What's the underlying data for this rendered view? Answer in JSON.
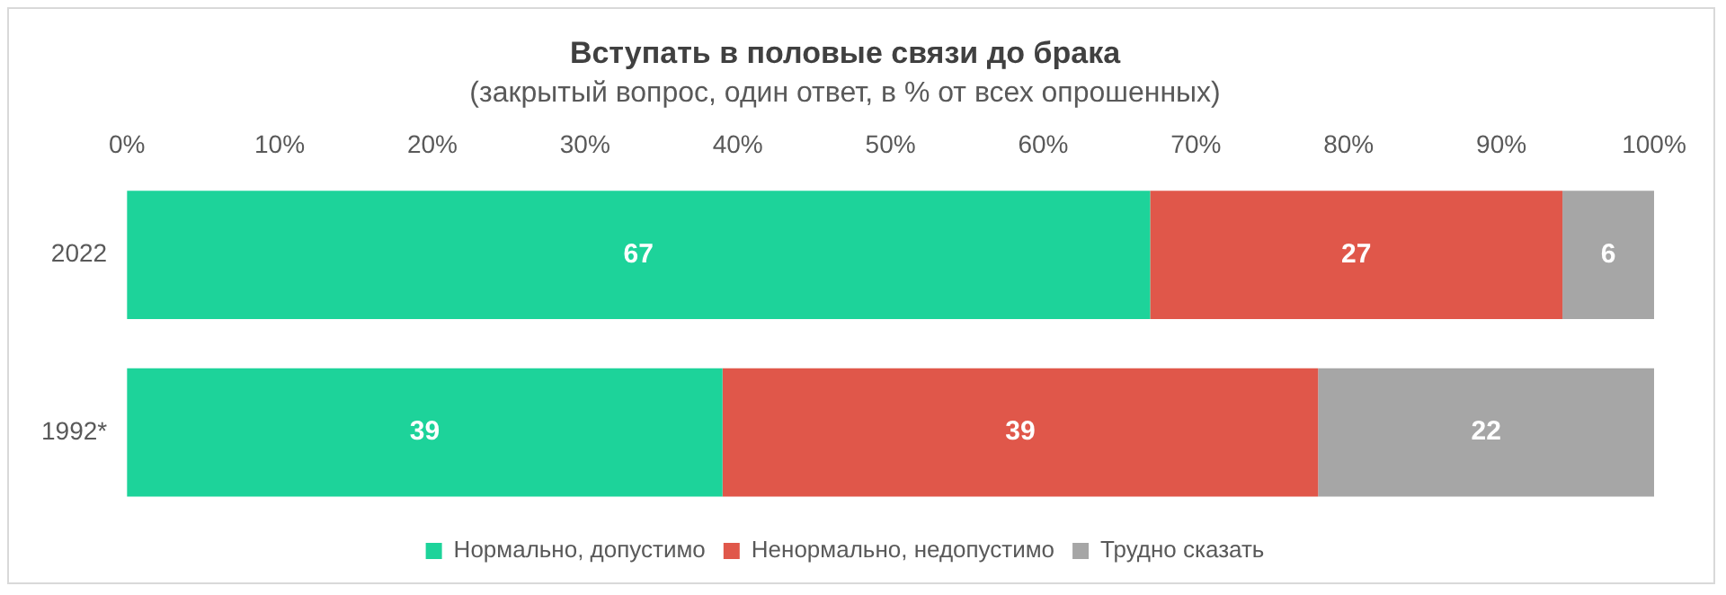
{
  "chart_data": {
    "type": "bar",
    "orientation": "horizontal",
    "stacked": true,
    "title": "Вступать в половые связи до брака",
    "subtitle": "(закрытый вопрос, один ответ, в % от всех опрошенных)",
    "categories": [
      "2022",
      "1992*"
    ],
    "series": [
      {
        "name": "Нормально, допустимо",
        "color": "#1dd39a",
        "values": [
          67,
          39
        ]
      },
      {
        "name": "Ненормально, недопустимо",
        "color": "#e0574a",
        "values": [
          27,
          39
        ]
      },
      {
        "name": "Трудно сказать",
        "color": "#a6a6a6",
        "values": [
          6,
          22
        ]
      }
    ],
    "xlim": [
      0,
      100
    ],
    "xticks": [
      {
        "value": 0,
        "label": "0%"
      },
      {
        "value": 10,
        "label": "10%"
      },
      {
        "value": 20,
        "label": "20%"
      },
      {
        "value": 30,
        "label": "30%"
      },
      {
        "value": 40,
        "label": "40%"
      },
      {
        "value": 50,
        "label": "50%"
      },
      {
        "value": 60,
        "label": "60%"
      },
      {
        "value": 70,
        "label": "70%"
      },
      {
        "value": 80,
        "label": "80%"
      },
      {
        "value": 90,
        "label": "90%"
      },
      {
        "value": 100,
        "label": "100%"
      }
    ],
    "grid": false,
    "legend": "bottom",
    "data_labels": true
  }
}
